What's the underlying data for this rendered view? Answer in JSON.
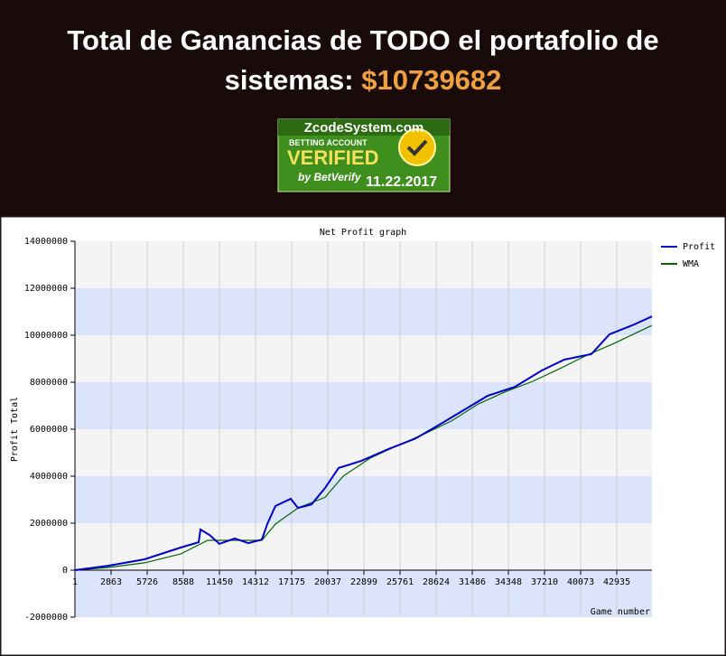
{
  "header": {
    "line1": "Total de Ganancias de TODO el portafolio de",
    "line2": "sistemas:",
    "amount": "$10739682"
  },
  "badge": {
    "site": "ZcodeSystem.com",
    "subtitle": "BETTING ACCOUNT",
    "verified": "VERIFIED",
    "by": "by BetVerify",
    "date": "11.22.2017"
  },
  "chart_data": {
    "type": "line",
    "title": "Net Profit graph",
    "x_label": "Game number",
    "y_label": "Profit Total",
    "xlim": [
      1,
      45722
    ],
    "ylim": [
      -2000000,
      14000000
    ],
    "xticks": [
      1,
      2863,
      5726,
      8588,
      11450,
      14312,
      17175,
      20037,
      22899,
      25761,
      28624,
      31486,
      34348,
      37210,
      40073,
      42935
    ],
    "yticks": [
      -2000000,
      0,
      2000000,
      4000000,
      6000000,
      8000000,
      10000000,
      12000000,
      14000000
    ],
    "grid": true,
    "legend": "top-right",
    "band_colors": [
      "#dce4fc",
      "#f4f4f4"
    ],
    "series": [
      {
        "name": "Profit",
        "color": "#0000cc",
        "x": [
          1,
          2648,
          5510,
          8372,
          9803,
          9946,
          10662,
          11449,
          12665,
          13739,
          14812,
          15241,
          15885,
          17102,
          17674,
          18747,
          19821,
          20894,
          22683,
          24830,
          26976,
          29123,
          31269,
          32700,
          34847,
          36993,
          38782,
          40928,
          42359,
          44148,
          45722
        ],
        "values": [
          0,
          190000,
          460000,
          960000,
          1190000,
          1730000,
          1500000,
          1120000,
          1350000,
          1150000,
          1300000,
          1960000,
          2730000,
          3040000,
          2650000,
          2800000,
          3500000,
          4350000,
          4650000,
          5150000,
          5600000,
          6270000,
          6960000,
          7420000,
          7800000,
          8500000,
          8960000,
          9200000,
          10040000,
          10420000,
          10800000
        ]
      },
      {
        "name": "WMA",
        "color": "#006600",
        "x": [
          1,
          2648,
          5510,
          8372,
          10519,
          12665,
          14812,
          15885,
          17674,
          19821,
          21252,
          23399,
          25545,
          27692,
          29838,
          31985,
          34131,
          36278,
          38424,
          40570,
          42717,
          45722
        ],
        "values": [
          0,
          115000,
          310000,
          690000,
          1270000,
          1270000,
          1270000,
          1960000,
          2650000,
          3100000,
          4000000,
          4770000,
          5300000,
          5800000,
          6350000,
          7080000,
          7600000,
          8040000,
          8580000,
          9150000,
          9650000,
          10420000
        ]
      }
    ]
  }
}
